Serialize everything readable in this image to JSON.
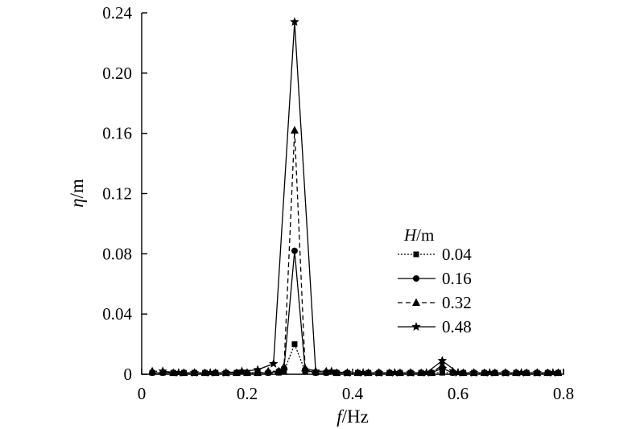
{
  "chart_data": {
    "type": "line",
    "xlabel": "f/Hz",
    "ylabel": "η/m",
    "xlim": [
      0,
      0.8
    ],
    "ylim": [
      0,
      0.24
    ],
    "xticks": [
      "0",
      "0.2",
      "0.4",
      "0.6",
      "0.8"
    ],
    "yticks": [
      "0",
      "0.04",
      "0.08",
      "0.12",
      "0.16",
      "0.20",
      "0.24"
    ],
    "grid": false,
    "legend_title": "H/m",
    "legend_position": "right-middle",
    "series": [
      {
        "name": "0.04",
        "line_style": "dotted",
        "marker": "square",
        "x": [
          0.02,
          0.04,
          0.06,
          0.08,
          0.1,
          0.12,
          0.14,
          0.16,
          0.18,
          0.2,
          0.22,
          0.24,
          0.26,
          0.27,
          0.29,
          0.31,
          0.33,
          0.35,
          0.37,
          0.39,
          0.41,
          0.43,
          0.45,
          0.47,
          0.49,
          0.51,
          0.53,
          0.55,
          0.57,
          0.59,
          0.61,
          0.63,
          0.65,
          0.67,
          0.69,
          0.71,
          0.73,
          0.75,
          0.77,
          0.79
        ],
        "y": [
          0.001,
          0.001,
          0.001,
          0.001,
          0.001,
          0.001,
          0.001,
          0.001,
          0.001,
          0.001,
          0.001,
          0.001,
          0.001,
          0.002,
          0.02,
          0.002,
          0.001,
          0.001,
          0.001,
          0.001,
          0.001,
          0.001,
          0.001,
          0.001,
          0.001,
          0.001,
          0.001,
          0.001,
          0.001,
          0.001,
          0.001,
          0.001,
          0.001,
          0.001,
          0.001,
          0.001,
          0.001,
          0.001,
          0.001,
          0.001
        ]
      },
      {
        "name": "0.16",
        "line_style": "solid",
        "marker": "circle",
        "x": [
          0.02,
          0.04,
          0.06,
          0.08,
          0.1,
          0.12,
          0.14,
          0.16,
          0.18,
          0.2,
          0.22,
          0.24,
          0.26,
          0.27,
          0.29,
          0.31,
          0.33,
          0.35,
          0.37,
          0.39,
          0.41,
          0.43,
          0.45,
          0.47,
          0.49,
          0.51,
          0.53,
          0.55,
          0.57,
          0.59,
          0.61,
          0.63,
          0.65,
          0.67,
          0.69,
          0.71,
          0.73,
          0.75,
          0.77,
          0.79
        ],
        "y": [
          0.001,
          0.001,
          0.001,
          0.001,
          0.001,
          0.001,
          0.001,
          0.001,
          0.001,
          0.001,
          0.001,
          0.001,
          0.002,
          0.004,
          0.082,
          0.003,
          0.001,
          0.001,
          0.001,
          0.001,
          0.001,
          0.001,
          0.001,
          0.001,
          0.001,
          0.001,
          0.001,
          0.001,
          0.004,
          0.001,
          0.001,
          0.001,
          0.001,
          0.001,
          0.001,
          0.001,
          0.001,
          0.001,
          0.001,
          0.001
        ]
      },
      {
        "name": "0.32",
        "line_style": "dashed",
        "marker": "triangle",
        "x": [
          0.02,
          0.04,
          0.06,
          0.08,
          0.1,
          0.12,
          0.14,
          0.16,
          0.18,
          0.2,
          0.22,
          0.24,
          0.26,
          0.27,
          0.29,
          0.31,
          0.33,
          0.35,
          0.37,
          0.39,
          0.41,
          0.43,
          0.45,
          0.47,
          0.49,
          0.51,
          0.53,
          0.55,
          0.57,
          0.59,
          0.61,
          0.63,
          0.65,
          0.67,
          0.69,
          0.71,
          0.73,
          0.75,
          0.77,
          0.79
        ],
        "y": [
          0.002,
          0.002,
          0.001,
          0.001,
          0.001,
          0.001,
          0.001,
          0.001,
          0.001,
          0.001,
          0.001,
          0.002,
          0.002,
          0.005,
          0.162,
          0.004,
          0.002,
          0.002,
          0.001,
          0.001,
          0.001,
          0.001,
          0.001,
          0.001,
          0.001,
          0.001,
          0.001,
          0.001,
          0.006,
          0.002,
          0.001,
          0.001,
          0.001,
          0.001,
          0.001,
          0.001,
          0.001,
          0.001,
          0.001,
          0.001
        ]
      },
      {
        "name": "0.48",
        "line_style": "solid",
        "marker": "star",
        "x": [
          0.04,
          0.07,
          0.1,
          0.13,
          0.16,
          0.19,
          0.22,
          0.25,
          0.29,
          0.33,
          0.36,
          0.39,
          0.42,
          0.45,
          0.48,
          0.51,
          0.54,
          0.57,
          0.6,
          0.63,
          0.66,
          0.69,
          0.72,
          0.75,
          0.78
        ],
        "y": [
          0.002,
          0.001,
          0.001,
          0.001,
          0.001,
          0.002,
          0.003,
          0.007,
          0.234,
          0.002,
          0.002,
          0.001,
          0.001,
          0.001,
          0.001,
          0.001,
          0.001,
          0.009,
          0.001,
          0.001,
          0.001,
          0.001,
          0.001,
          0.001,
          0.001
        ]
      }
    ]
  }
}
